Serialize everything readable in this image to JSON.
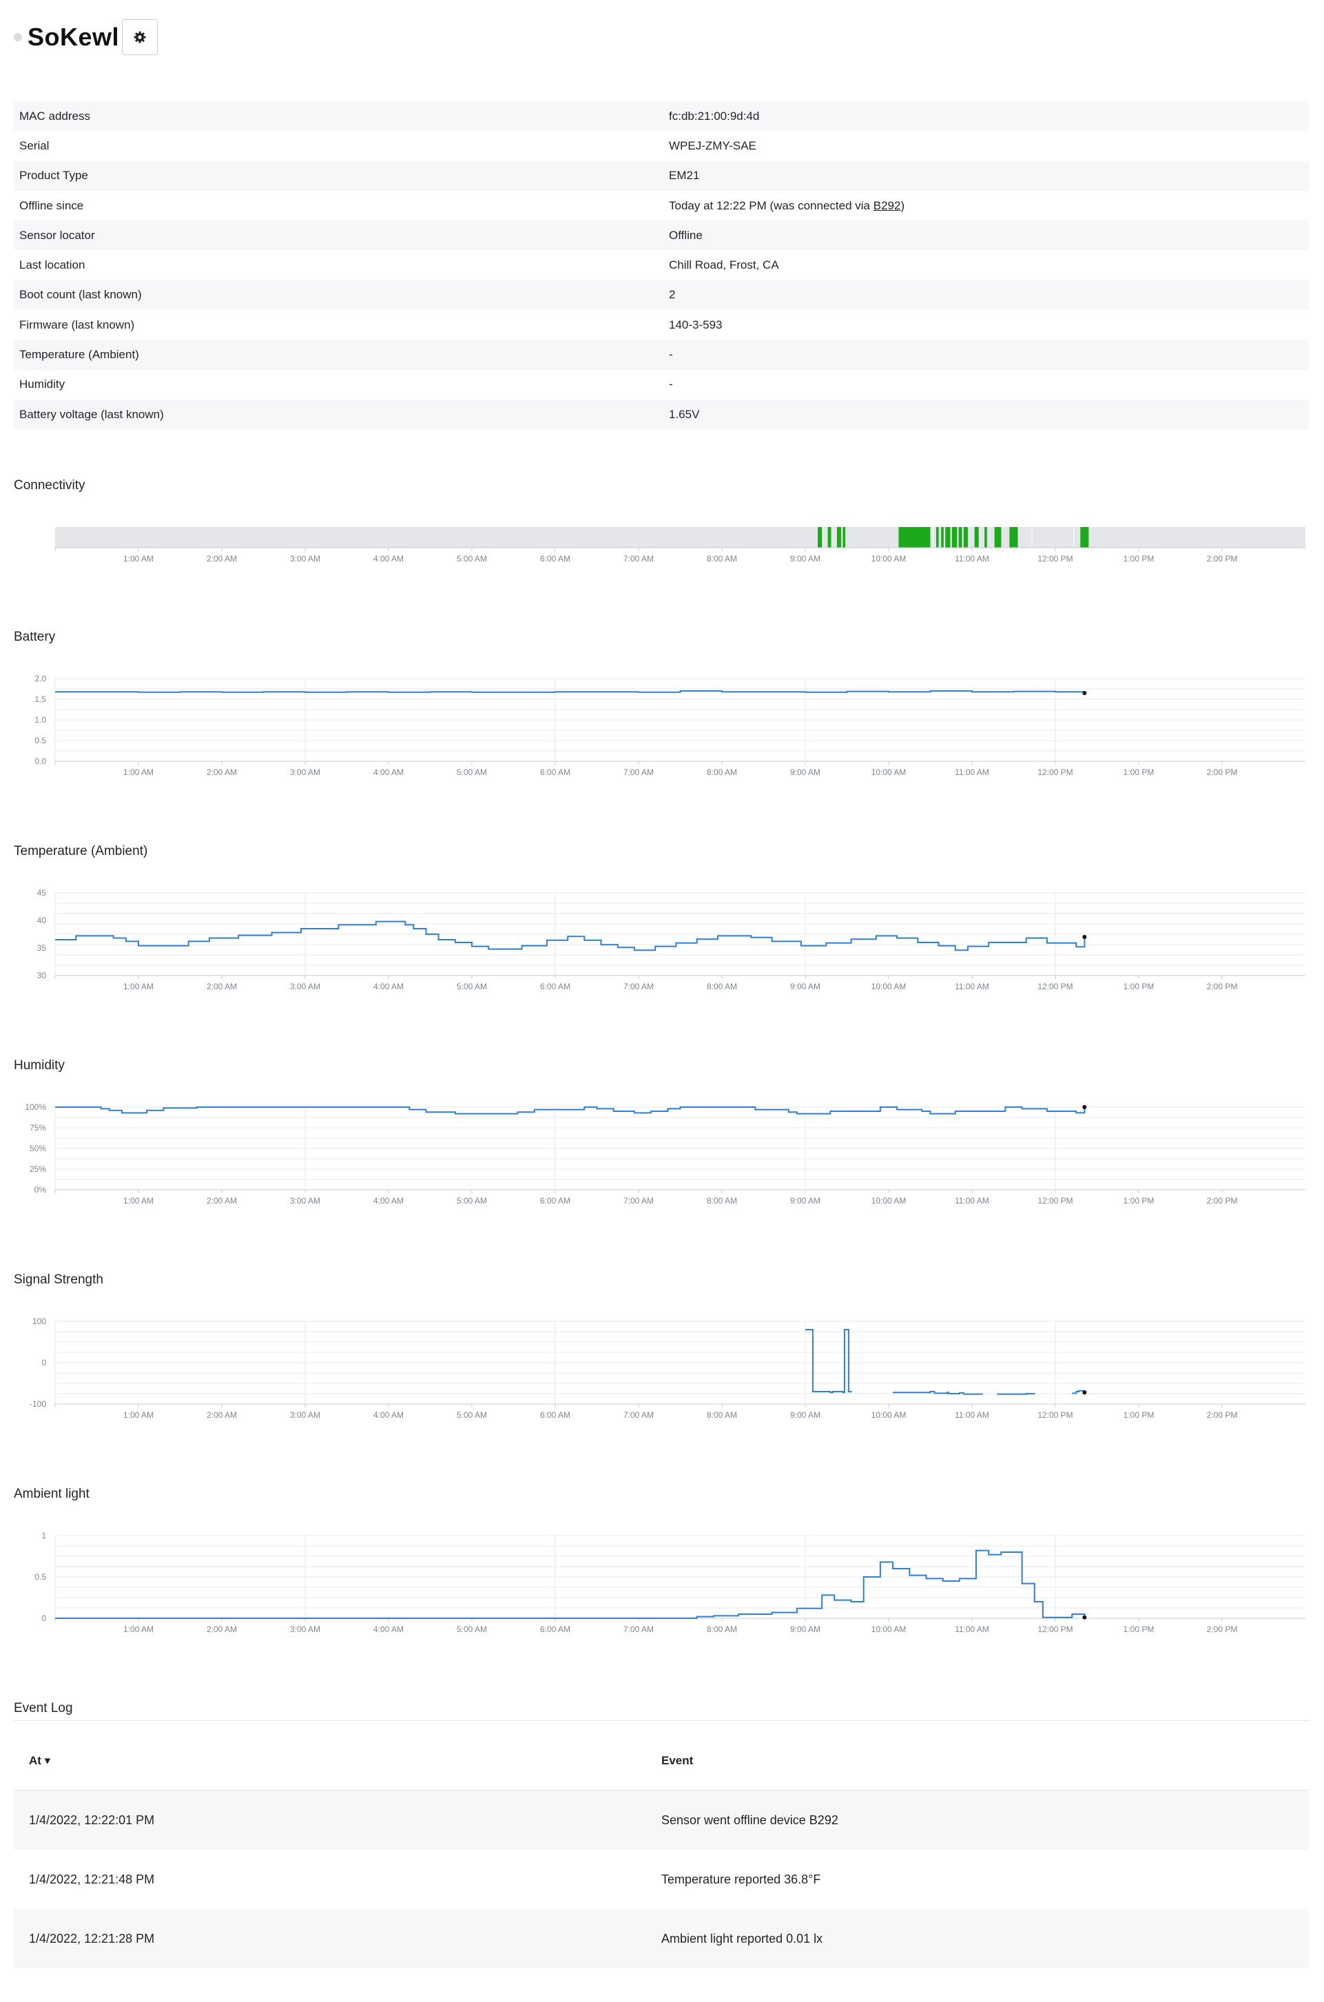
{
  "device": {
    "name": "SoKewl",
    "status_color": "#d8dbe0"
  },
  "settings_button": {
    "icon": "gear-icon"
  },
  "properties": [
    {
      "key": "MAC address",
      "value": "fc:db:21:00:9d:4d"
    },
    {
      "key": "Serial",
      "value": "WPEJ-ZMY-SAE"
    },
    {
      "key": "Product Type",
      "value": "EM21"
    },
    {
      "key": "Offline since",
      "value": "Today at 12:22 PM (was connected via ",
      "link": "B292",
      "suffix": ")"
    },
    {
      "key": "Sensor locator",
      "value": "Offline"
    },
    {
      "key": "Last location",
      "value": "Chill Road, Frost, CA"
    },
    {
      "key": "Boot count (last known)",
      "value": "2"
    },
    {
      "key": "Firmware (last known)",
      "value": "140-3-593"
    },
    {
      "key": "Temperature (Ambient)",
      "value": "-"
    },
    {
      "key": "Humidity",
      "value": "-"
    },
    {
      "key": "Battery voltage (last known)",
      "value": "1.65V"
    }
  ],
  "x_ticks": [
    "1:00 AM",
    "2:00 AM",
    "3:00 AM",
    "4:00 AM",
    "5:00 AM",
    "6:00 AM",
    "7:00 AM",
    "8:00 AM",
    "9:00 AM",
    "10:00 AM",
    "11:00 AM",
    "12:00 PM",
    "1:00 PM",
    "2:00 PM"
  ],
  "colors": {
    "line": "#2f7fd6",
    "connected": "#1aaa1a",
    "track": "#e4e6ea",
    "grid": "#e6e8eb",
    "endpoint": "#111111"
  },
  "connectivity": {
    "title": "Connectivity",
    "x_unit": "hours",
    "connected_intervals": [
      [
        9.15,
        9.2
      ],
      [
        9.27,
        9.31
      ],
      [
        9.38,
        9.43
      ],
      [
        9.45,
        9.48
      ],
      [
        10.12,
        10.5
      ],
      [
        10.57,
        10.6
      ],
      [
        10.63,
        10.66
      ],
      [
        10.68,
        10.74
      ],
      [
        10.76,
        10.82
      ],
      [
        10.84,
        10.88
      ],
      [
        10.9,
        10.95
      ],
      [
        11.03,
        11.08
      ],
      [
        11.15,
        11.18
      ],
      [
        11.27,
        11.35
      ],
      [
        11.45,
        11.55
      ],
      [
        12.3,
        12.4
      ]
    ],
    "gap_marks": [
      9.22,
      10.53,
      11.72,
      12.22
    ]
  },
  "chart_data": [
    {
      "type": "line",
      "title": "Battery",
      "x_unit": "hours since 12:00 AM",
      "xlim": [
        0,
        15
      ],
      "ylim": [
        0,
        2
      ],
      "yticks": [
        "0.0",
        "0.5",
        "1.0",
        "1.5",
        "2.0"
      ],
      "ytick_values": [
        0,
        0.5,
        1,
        1.5,
        2
      ],
      "grid": true,
      "x": [
        0,
        1,
        1.5,
        2,
        2.5,
        3,
        3.5,
        4,
        4.5,
        5,
        6,
        7,
        7.5,
        8,
        9,
        9.5,
        10,
        10.5,
        11,
        11.5,
        12,
        12.35
      ],
      "y": [
        1.68,
        1.67,
        1.68,
        1.67,
        1.68,
        1.67,
        1.68,
        1.67,
        1.68,
        1.67,
        1.68,
        1.67,
        1.7,
        1.68,
        1.67,
        1.69,
        1.68,
        1.7,
        1.68,
        1.69,
        1.68,
        1.65
      ]
    },
    {
      "type": "line",
      "title": "Temperature (Ambient)",
      "x_unit": "hours since 12:00 AM",
      "xlim": [
        0,
        15
      ],
      "ylim": [
        30,
        45
      ],
      "yticks": [
        "30",
        "35",
        "40",
        "45"
      ],
      "ytick_values": [
        30,
        35,
        40,
        45
      ],
      "grid": true,
      "x": [
        0,
        0.25,
        0.7,
        0.85,
        1,
        1.4,
        1.6,
        1.85,
        2.2,
        2.6,
        2.95,
        3.4,
        3.85,
        4.2,
        4.3,
        4.45,
        4.6,
        4.8,
        5.0,
        5.2,
        5.6,
        5.9,
        6.15,
        6.35,
        6.55,
        6.75,
        6.95,
        7.2,
        7.45,
        7.7,
        7.95,
        8.35,
        8.6,
        8.95,
        9.25,
        9.55,
        9.85,
        10.1,
        10.35,
        10.6,
        10.8,
        10.95,
        11.2,
        11.65,
        11.9,
        12.25,
        12.35
      ],
      "y": [
        36.5,
        37.2,
        36.8,
        36.2,
        35.4,
        35.4,
        36.2,
        36.8,
        37.3,
        37.8,
        38.5,
        39.2,
        39.8,
        39.2,
        38.5,
        37.5,
        36.5,
        36,
        35.3,
        34.8,
        35.4,
        36.4,
        37.1,
        36.4,
        35.6,
        35.1,
        34.6,
        35.3,
        35.9,
        36.6,
        37.2,
        36.9,
        36.2,
        35.4,
        35.9,
        36.6,
        37.2,
        36.8,
        36.0,
        35.4,
        34.6,
        35.3,
        36.0,
        36.8,
        35.9,
        35.2,
        37.0
      ]
    },
    {
      "type": "line",
      "title": "Humidity",
      "x_unit": "hours since 12:00 AM",
      "xlim": [
        0,
        15
      ],
      "ylim": [
        0,
        100
      ],
      "yticks": [
        "0%",
        "25%",
        "50%",
        "75%",
        "100%"
      ],
      "ytick_values": [
        0,
        25,
        50,
        75,
        100
      ],
      "grid": true,
      "x": [
        0,
        0.55,
        0.65,
        0.8,
        1.1,
        1.3,
        1.7,
        2.2,
        4.1,
        4.25,
        4.45,
        4.8,
        5.3,
        5.55,
        5.75,
        6.35,
        6.5,
        6.7,
        6.95,
        7.15,
        7.35,
        7.5,
        8.2,
        8.4,
        8.8,
        8.9,
        9.3,
        9.9,
        10.1,
        10.4,
        10.5,
        10.8,
        11.4,
        11.6,
        11.9,
        12.25,
        12.35
      ],
      "y": [
        100,
        98,
        96,
        93,
        96,
        99,
        100,
        100,
        100,
        97,
        94,
        92,
        92,
        94,
        97,
        100,
        98,
        95,
        93,
        95,
        98,
        100,
        100,
        97,
        94,
        92,
        95,
        100,
        97,
        95,
        92,
        95,
        100,
        98,
        95,
        93,
        100
      ]
    },
    {
      "type": "line",
      "title": "Signal Strength",
      "x_unit": "hours since 12:00 AM",
      "xlim": [
        0,
        15
      ],
      "ylim": [
        -100,
        100
      ],
      "yticks": [
        "-100",
        "0",
        "100"
      ],
      "ytick_values": [
        -100,
        0,
        100
      ],
      "grid": true,
      "series": [
        {
          "x": [
            9.0,
            9.07,
            9.09,
            9.3,
            9.33,
            9.45,
            9.47,
            9.49,
            9.52,
            9.55
          ],
          "y": [
            80,
            80,
            -70,
            -72,
            -70,
            -72,
            80,
            80,
            -70,
            -72
          ]
        },
        {
          "x": [
            10.05,
            10.5,
            10.55,
            10.7,
            10.72,
            10.85,
            10.9,
            11.12
          ],
          "y": [
            -72,
            -70,
            -74,
            -72,
            -75,
            -73,
            -76,
            -74
          ]
        },
        {
          "x": [
            11.3,
            11.65,
            11.75
          ],
          "y": [
            -76,
            -75,
            -74
          ]
        },
        {
          "x": [
            12.2,
            12.25,
            12.28,
            12.35
          ],
          "y": [
            -74,
            -70,
            -68,
            -72
          ]
        }
      ]
    },
    {
      "type": "line",
      "title": "Ambient light",
      "x_unit": "hours since 12:00 AM",
      "xlim": [
        0,
        15
      ],
      "ylim": [
        0,
        1
      ],
      "yticks": [
        "0",
        "0.5",
        "1"
      ],
      "ytick_values": [
        0,
        0.5,
        1
      ],
      "grid": true,
      "x": [
        0,
        7.5,
        7.7,
        7.9,
        8.2,
        8.6,
        8.9,
        9.2,
        9.35,
        9.55,
        9.7,
        9.9,
        10.05,
        10.25,
        10.45,
        10.65,
        10.85,
        11.05,
        11.2,
        11.35,
        11.6,
        11.75,
        11.85,
        12.2,
        12.3,
        12.35
      ],
      "y": [
        0,
        0,
        0.02,
        0.03,
        0.05,
        0.07,
        0.12,
        0.28,
        0.22,
        0.2,
        0.5,
        0.68,
        0.6,
        0.52,
        0.48,
        0.45,
        0.48,
        0.82,
        0.77,
        0.8,
        0.42,
        0.2,
        0.01,
        0.05,
        0.05,
        0.01
      ]
    }
  ],
  "event_log": {
    "title": "Event Log",
    "columns": {
      "at": "At ▾",
      "event": "Event"
    },
    "rows": [
      {
        "at": "1/4/2022, 12:22:01 PM",
        "event": "Sensor went offline device B292"
      },
      {
        "at": "1/4/2022, 12:21:48 PM",
        "event": "Temperature reported 36.8°F"
      },
      {
        "at": "1/4/2022, 12:21:28 PM",
        "event": "Ambient light reported 0.01 lx"
      }
    ]
  }
}
